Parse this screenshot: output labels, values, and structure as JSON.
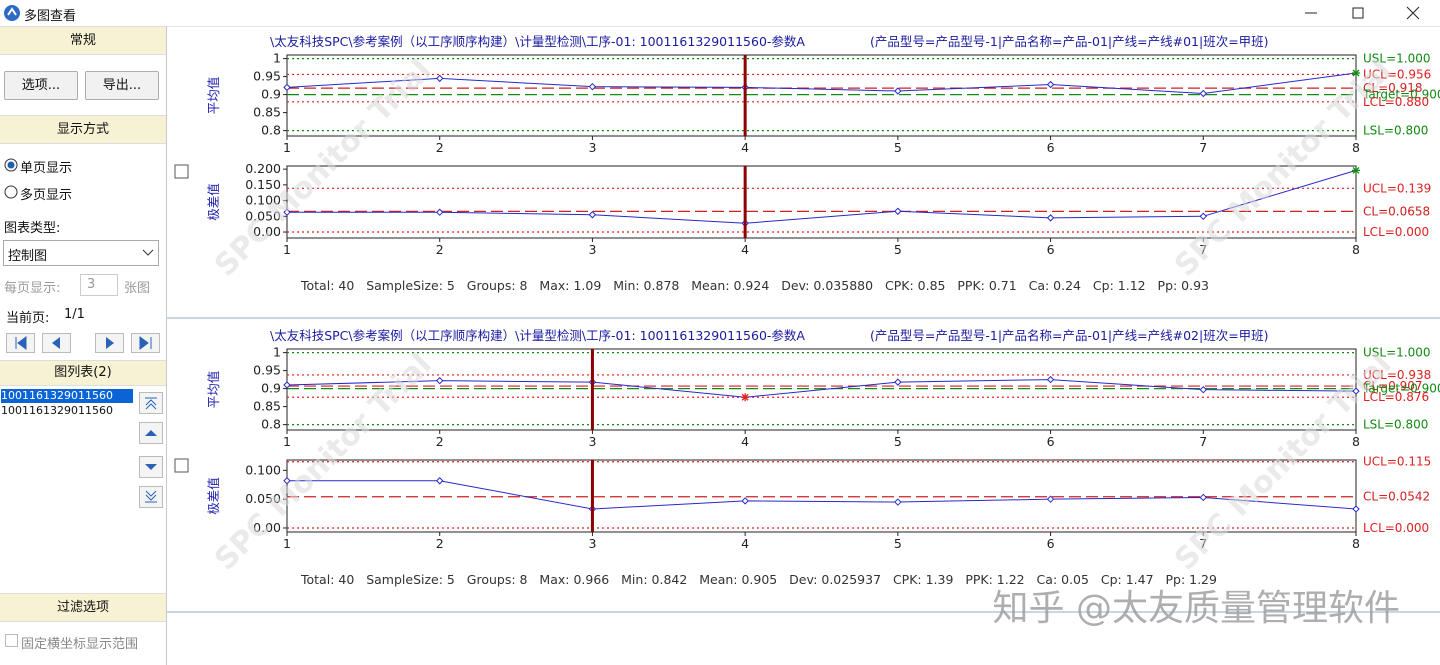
{
  "window": {
    "title": "多图查看"
  },
  "sidebar": {
    "general": {
      "heading": "常规",
      "buttons": [
        "选项...",
        "导出..."
      ]
    },
    "display": {
      "heading": "显示方式",
      "modes": [
        "单页显示",
        "多页显示"
      ],
      "chart_type_label": "图表类型:",
      "chart_type": "控制图",
      "per_page_label": "每页显示:",
      "per_page": "3",
      "per_page_unit": "张图",
      "current_page_label": "当前页:",
      "current_page": "1/1"
    },
    "chart_list": {
      "heading": "图列表(2)",
      "items": [
        "1001161329011560",
        "1001161329011560"
      ]
    },
    "filter": {
      "heading": "过滤选项",
      "fixed_x_range": "固定横坐标显示范围"
    }
  },
  "watermark": "SPC Monitor Trial",
  "footer_watermark": "知乎 @太友质量管理软件",
  "panels": [
    {
      "title": "\\太友科技SPC\\参考案例（以工序顺序构建）\\计量型检测\\工序-01: 1001161329011560-参数A",
      "condition": "(产品型号=产品型号-1|产品名称=产品-01|产线=产线#01|班次=甲班)",
      "stats": "Total: 40   SampleSize: 5   Groups: 8   Max: 1.09   Min: 0.878   Mean: 0.924   Dev: 0.035880   CPK: 0.85   PPK: 0.71   Ca: 0.24   Cp: 1.12   Pp: 0.93",
      "chart_data": [
        {
          "type": "line",
          "y_label": "平均值",
          "x": [
            1,
            2,
            3,
            4,
            5,
            6,
            7,
            8
          ],
          "xlim": [
            1,
            8
          ],
          "xticks": [
            1,
            2,
            3,
            4,
            5,
            6,
            7,
            8
          ],
          "ylim": [
            0.785,
            1.01
          ],
          "yticks": [
            1,
            0.95,
            0.9,
            0.85,
            0.8
          ],
          "cursor_x": 4,
          "series": [
            {
              "color": "#2828c8",
              "values": [
                0.92,
                0.945,
                0.922,
                0.92,
                0.91,
                0.928,
                0.903,
                0.96
              ]
            }
          ],
          "control_lines": [
            {
              "label": "USL=1.000",
              "value": 1.0,
              "color": "#138a13",
              "style": "dotted"
            },
            {
              "label": "UCL=0.956",
              "value": 0.956,
              "color": "#e02020",
              "style": "dotted"
            },
            {
              "label": "CL=0.918",
              "value": 0.918,
              "color": "#d02020",
              "style": "dashed"
            },
            {
              "label": "Target=0.900",
              "value": 0.9,
              "color": "#138a13",
              "style": "dashed"
            },
            {
              "label": "LCL=0.880",
              "value": 0.88,
              "color": "#e02020",
              "style": "dotted"
            },
            {
              "label": "LSL=0.800",
              "value": 0.8,
              "color": "#138a13",
              "style": "dotted"
            }
          ]
        },
        {
          "type": "line",
          "y_label": "极差值",
          "x": [
            1,
            2,
            3,
            4,
            5,
            6,
            7,
            8
          ],
          "xlim": [
            1,
            8
          ],
          "xticks": [
            1,
            2,
            3,
            4,
            5,
            6,
            7,
            8
          ],
          "ylim": [
            -0.019,
            0.21
          ],
          "yticks": [
            {
              "value": 0.2,
              "label": "0.200"
            },
            {
              "value": 0.15,
              "label": "0.150"
            },
            {
              "value": 0.1,
              "label": "0.100"
            },
            {
              "value": 0.05,
              "label": "0.050"
            },
            {
              "value": 0,
              "label": "0.00"
            }
          ],
          "cursor_x": 4,
          "series": [
            {
              "color": "#2828c8",
              "values": [
                0.063,
                0.063,
                0.055,
                0.028,
                0.066,
                0.045,
                0.05,
                0.196
              ]
            }
          ],
          "control_lines": [
            {
              "label": "UCL=0.139",
              "value": 0.139,
              "color": "#e02020",
              "style": "dotted"
            },
            {
              "label": "CL=0.0658",
              "value": 0.0658,
              "color": "#d02020",
              "style": "dashed"
            },
            {
              "label": "LCL=0.000",
              "value": 0,
              "color": "#e02020",
              "style": "dotted"
            }
          ]
        }
      ]
    },
    {
      "title": "\\太友科技SPC\\参考案例（以工序顺序构建）\\计量型检测\\工序-01: 1001161329011560-参数A",
      "condition": "(产品型号=产品型号-1|产品名称=产品-01|产线=产线#02|班次=甲班)",
      "stats": "Total: 40   SampleSize: 5   Groups: 8   Max: 0.966   Min: 0.842   Mean: 0.905   Dev: 0.025937   CPK: 1.39   PPK: 1.22   Ca: 0.05   Cp: 1.47   Pp: 1.29",
      "chart_data": [
        {
          "type": "line",
          "y_label": "平均值",
          "x": [
            1,
            2,
            3,
            4,
            5,
            6,
            7,
            8
          ],
          "xlim": [
            1,
            8
          ],
          "xticks": [
            1,
            2,
            3,
            4,
            5,
            6,
            7,
            8
          ],
          "ylim": [
            0.785,
            1.01
          ],
          "yticks": [
            1,
            0.95,
            0.9,
            0.85,
            0.8
          ],
          "cursor_x": 3,
          "series": [
            {
              "color": "#2828c8",
              "values": [
                0.91,
                0.922,
                0.918,
                0.876,
                0.918,
                0.925,
                0.897,
                0.893
              ]
            }
          ],
          "control_lines": [
            {
              "label": "USL=1.000",
              "value": 1.0,
              "color": "#138a13",
              "style": "dotted"
            },
            {
              "label": "UCL=0.938",
              "value": 0.938,
              "color": "#e02020",
              "style": "dotted"
            },
            {
              "label": "CL=0.907",
              "value": 0.907,
              "color": "#d02020",
              "style": "dashed"
            },
            {
              "label": "Target=0.900",
              "value": 0.9,
              "color": "#138a13",
              "style": "dashed"
            },
            {
              "label": "LCL=0.876",
              "value": 0.876,
              "color": "#e02020",
              "style": "dotted"
            },
            {
              "label": "LSL=0.800",
              "value": 0.8,
              "color": "#138a13",
              "style": "dotted"
            }
          ]
        },
        {
          "type": "line",
          "y_label": "极差值",
          "x": [
            1,
            2,
            3,
            4,
            5,
            6,
            7,
            8
          ],
          "xlim": [
            1,
            8
          ],
          "xticks": [
            1,
            2,
            3,
            4,
            5,
            6,
            7,
            8
          ],
          "ylim": [
            -0.007,
            0.118
          ],
          "yticks": [
            {
              "value": 0.1,
              "label": "0.100"
            },
            {
              "value": 0.05,
              "label": "0.050"
            },
            {
              "value": 0,
              "label": "0.00"
            }
          ],
          "cursor_x": 3,
          "series": [
            {
              "color": "#2828c8",
              "values": [
                0.082,
                0.082,
                0.033,
                0.047,
                0.045,
                0.05,
                0.053,
                0.033
              ]
            }
          ],
          "control_lines": [
            {
              "label": "UCL=0.115",
              "value": 0.115,
              "color": "#e02020",
              "style": "dotted"
            },
            {
              "label": "CL=0.0542",
              "value": 0.0542,
              "color": "#d02020",
              "style": "dashed"
            },
            {
              "label": "LCL=0.000",
              "value": 0,
              "color": "#e02020",
              "style": "dotted"
            }
          ]
        }
      ]
    }
  ]
}
